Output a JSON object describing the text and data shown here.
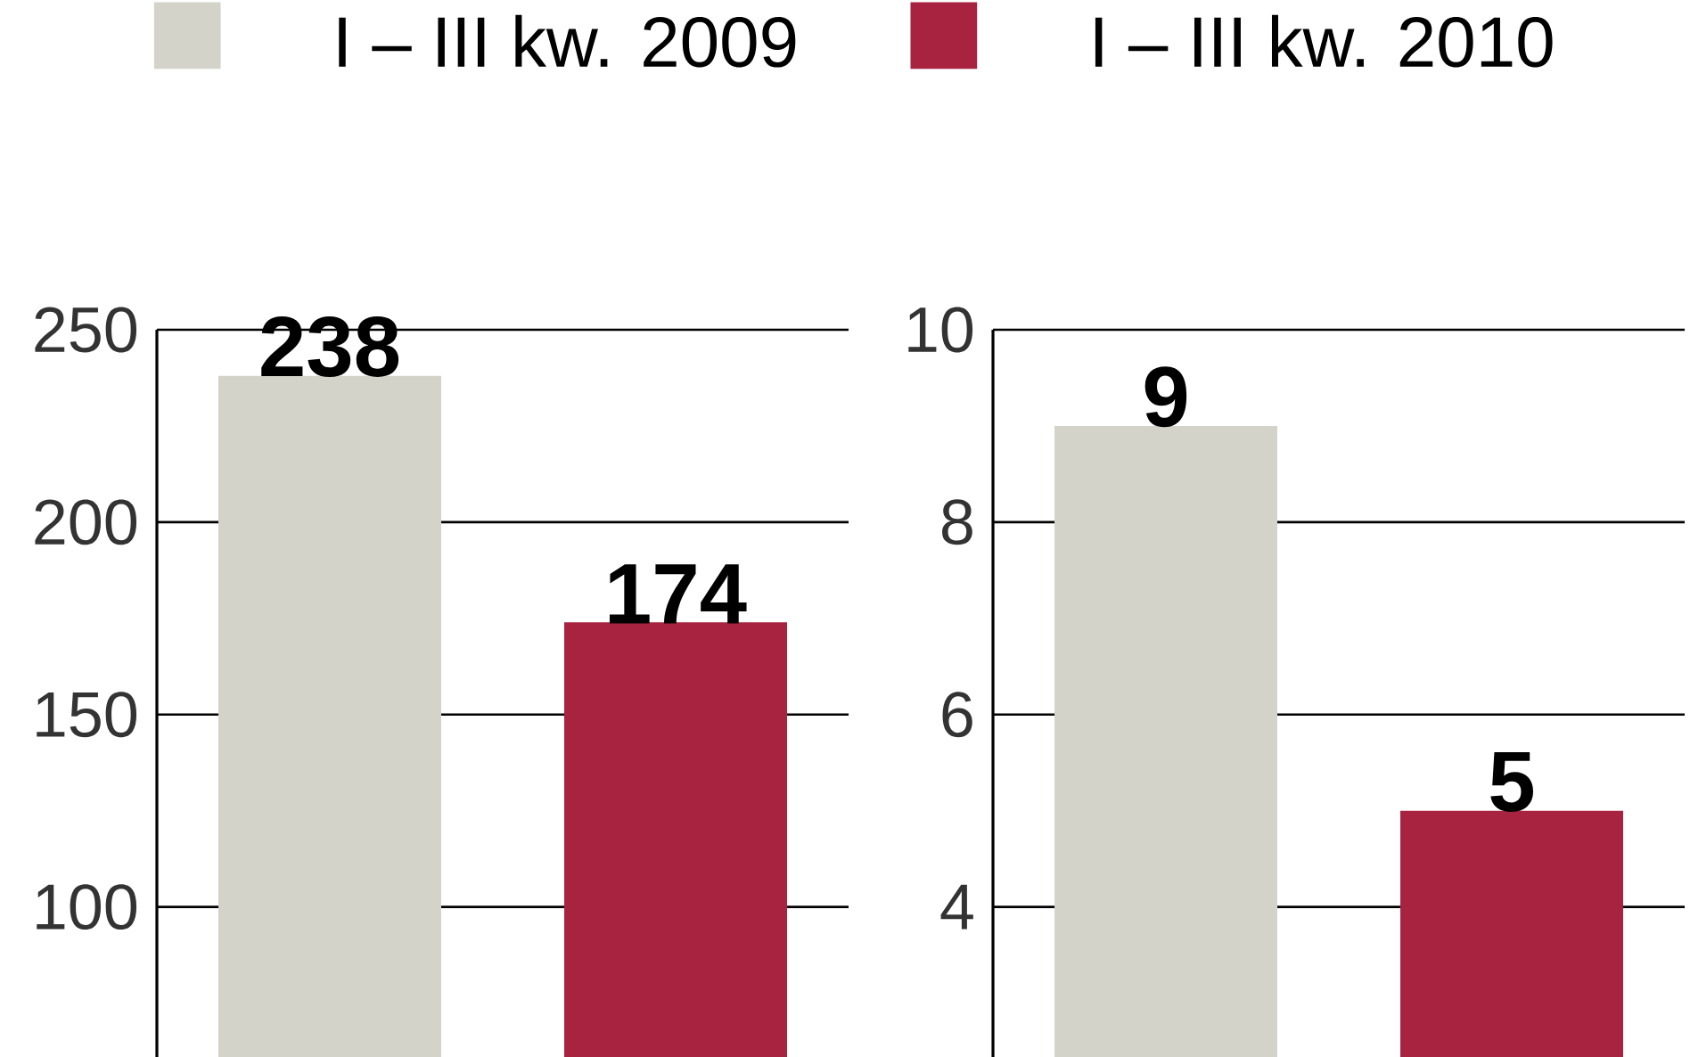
{
  "chart_data": [
    {
      "type": "bar",
      "categories": [
        null
      ],
      "series": [
        {
          "name": "I – III kw. 2009",
          "color": "#d3d3ca",
          "values": [
            238
          ]
        },
        {
          "name": "I – III kw. 2010",
          "color": "#a82340",
          "values": [
            174
          ]
        }
      ],
      "ylim": [
        61,
        250
      ],
      "yticks": [
        100,
        150,
        200,
        250
      ],
      "grid": "y",
      "legend": "top",
      "data_labels": true
    },
    {
      "type": "bar",
      "categories": [
        null
      ],
      "series": [
        {
          "color": "#d3d3ca",
          "values": [
            9
          ]
        },
        {
          "color": "#a82340",
          "values": [
            5
          ]
        }
      ],
      "ylim": [
        2.44,
        10
      ],
      "yticks": [
        4,
        6,
        8,
        10
      ],
      "grid": "y",
      "data_labels": true
    }
  ]
}
